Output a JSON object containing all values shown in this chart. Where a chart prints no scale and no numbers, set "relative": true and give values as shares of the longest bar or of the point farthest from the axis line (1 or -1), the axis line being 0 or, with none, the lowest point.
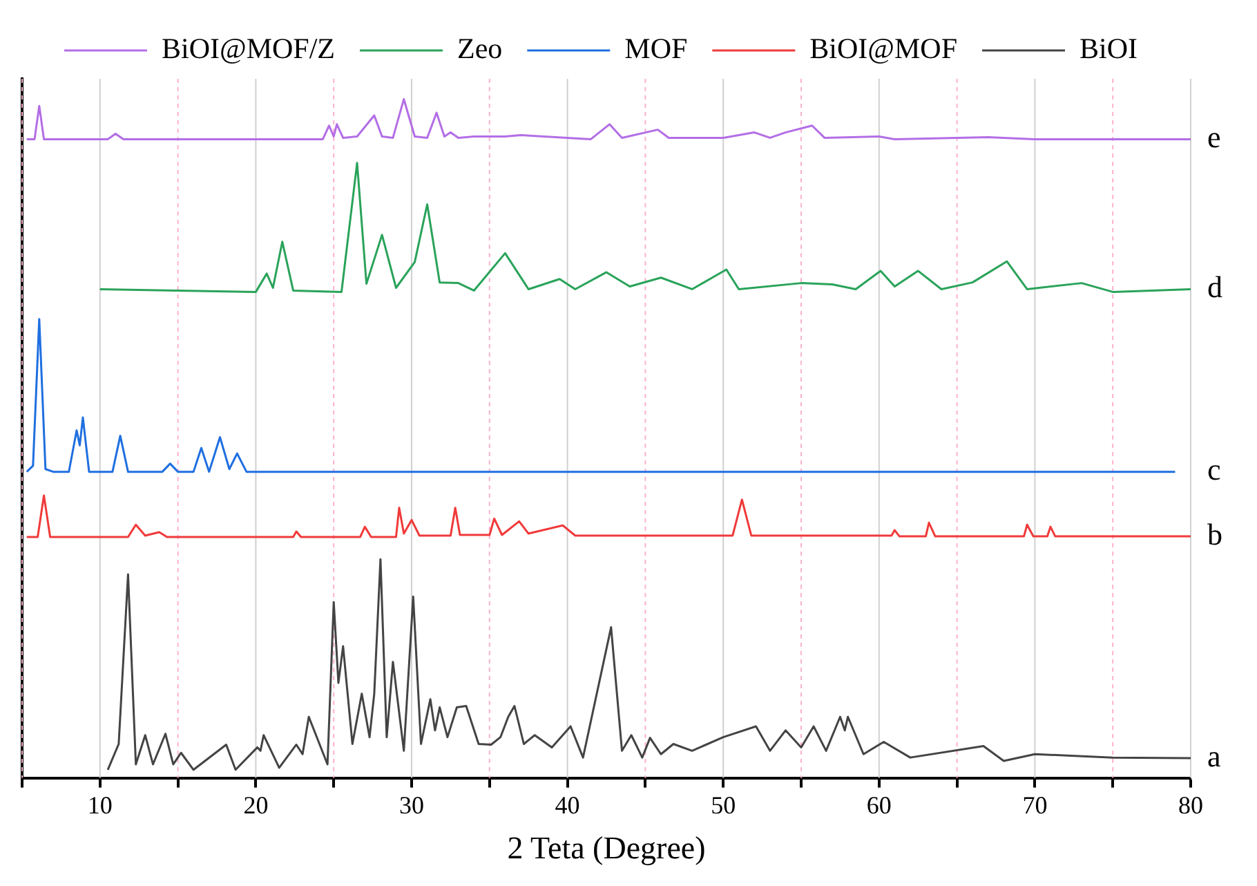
{
  "chart_data": {
    "type": "line",
    "relative": true,
    "xlabel": "2 Teta (Degree)",
    "xlim": [
      5,
      80
    ],
    "xticks": [
      {
        "value": 5,
        "label": null
      },
      10,
      {
        "value": 15,
        "label": null
      },
      20,
      {
        "value": 25,
        "label": null
      },
      30,
      {
        "value": 35,
        "label": null
      },
      40,
      {
        "value": 45,
        "label": null
      },
      50,
      {
        "value": 55,
        "label": null
      },
      60,
      {
        "value": 65,
        "label": null
      },
      70,
      {
        "value": 75,
        "label": null
      },
      80
    ],
    "grid": "x",
    "legend": "top",
    "marker": "none",
    "line_style": "solid",
    "annotations": [
      "e",
      "d",
      "c",
      "b",
      "a"
    ],
    "series": [
      {
        "name": "BiOI@MOF/Z",
        "color": "#b36ee6",
        "x": [
          5.3,
          5.8,
          6.1,
          6.4,
          10.5,
          11,
          11.5,
          24.3,
          24.7,
          25,
          25.2,
          25.6,
          26.5,
          27.6,
          28.1,
          28.8,
          29.5,
          30.2,
          31,
          31.6,
          32.1,
          32.5,
          33,
          34,
          36,
          37,
          41.5,
          42.7,
          43.5,
          45.8,
          46.5,
          50,
          52,
          53,
          54,
          55.7,
          56.5,
          60,
          61,
          67,
          70,
          80
        ],
        "values": [
          0.941,
          0.941,
          0.99,
          0.941,
          0.941,
          0.949,
          0.941,
          0.941,
          0.961,
          0.945,
          0.963,
          0.943,
          0.945,
          0.976,
          0.945,
          0.943,
          1.0,
          0.945,
          0.943,
          0.98,
          0.945,
          0.951,
          0.943,
          0.945,
          0.945,
          0.947,
          0.941,
          0.963,
          0.943,
          0.955,
          0.943,
          0.943,
          0.951,
          0.943,
          0.951,
          0.961,
          0.943,
          0.945,
          0.941,
          0.944,
          0.941,
          0.941
        ]
      },
      {
        "name": "Zeo",
        "color": "#2aa35a",
        "x": [
          10,
          15,
          20,
          20.7,
          21.1,
          21.7,
          22.4,
          25.5,
          26.5,
          27.1,
          28.1,
          29,
          30.2,
          31,
          31.8,
          33,
          34,
          36,
          37.5,
          39.5,
          40.5,
          42.5,
          44,
          46,
          48,
          50.2,
          51,
          55,
          57,
          58.5,
          60.1,
          61,
          62.5,
          64,
          66,
          68.2,
          69.5,
          73,
          75,
          80
        ],
        "values": [
          0.72,
          0.718,
          0.716,
          0.743,
          0.722,
          0.79,
          0.718,
          0.716,
          0.906,
          0.728,
          0.8,
          0.722,
          0.76,
          0.845,
          0.73,
          0.729,
          0.718,
          0.773,
          0.72,
          0.735,
          0.72,
          0.745,
          0.724,
          0.737,
          0.72,
          0.749,
          0.72,
          0.729,
          0.727,
          0.72,
          0.747,
          0.724,
          0.747,
          0.72,
          0.73,
          0.761,
          0.72,
          0.729,
          0.716,
          0.72
        ]
      },
      {
        "name": "MOF",
        "color": "#1f6fe0",
        "x": [
          5.3,
          5.7,
          6.1,
          6.5,
          7,
          8,
          8.5,
          8.7,
          8.9,
          9.3,
          10.8,
          11.3,
          11.8,
          14,
          14.5,
          15,
          16,
          16.5,
          17,
          17.7,
          18.3,
          18.8,
          19.4,
          20,
          79
        ],
        "values": [
          0.451,
          0.46,
          0.676,
          0.455,
          0.451,
          0.451,
          0.512,
          0.49,
          0.531,
          0.451,
          0.451,
          0.504,
          0.451,
          0.451,
          0.463,
          0.451,
          0.451,
          0.486,
          0.451,
          0.502,
          0.455,
          0.478,
          0.451,
          0.451,
          0.451
        ]
      },
      {
        "name": "BiOI@MOF",
        "color": "#f03a3a",
        "x": [
          5.3,
          6,
          6.4,
          6.8,
          11.8,
          12.3,
          12.9,
          13.8,
          14.3,
          22.4,
          22.6,
          22.9,
          26.7,
          27,
          27.4,
          29,
          29.2,
          29.5,
          30,
          30.5,
          32.5,
          32.8,
          33.1,
          35,
          35.3,
          35.8,
          36.9,
          37.5,
          39.7,
          40.5,
          50.6,
          51.2,
          51.8,
          60.8,
          61,
          61.3,
          63,
          63.2,
          63.6,
          69.3,
          69.5,
          69.9,
          70.8,
          71,
          71.3,
          80
        ],
        "values": [
          0.355,
          0.355,
          0.416,
          0.355,
          0.355,
          0.373,
          0.357,
          0.362,
          0.355,
          0.355,
          0.363,
          0.355,
          0.355,
          0.37,
          0.355,
          0.355,
          0.398,
          0.36,
          0.38,
          0.357,
          0.357,
          0.398,
          0.358,
          0.358,
          0.382,
          0.358,
          0.378,
          0.36,
          0.372,
          0.357,
          0.357,
          0.41,
          0.357,
          0.357,
          0.365,
          0.356,
          0.356,
          0.376,
          0.356,
          0.356,
          0.373,
          0.356,
          0.356,
          0.37,
          0.356,
          0.356
        ]
      },
      {
        "name": "BiOI",
        "color": "#444444",
        "x": [
          10.5,
          11.2,
          11.8,
          12.3,
          12.9,
          13.4,
          14.2,
          14.7,
          15.2,
          16,
          18.1,
          18.7,
          20.1,
          20.3,
          20.5,
          21.5,
          22.6,
          23,
          23.4,
          24.6,
          25,
          25.3,
          25.6,
          26.2,
          26.8,
          27.3,
          27.6,
          28,
          28.4,
          28.8,
          29.5,
          30.1,
          30.6,
          31.2,
          31.5,
          31.8,
          32.3,
          32.9,
          33.5,
          34.3,
          35.1,
          35.7,
          36.2,
          36.6,
          37.2,
          37.9,
          39,
          40.2,
          41,
          42.8,
          43.5,
          44.1,
          44.8,
          45.3,
          46,
          46.8,
          48,
          50,
          52.1,
          53,
          54,
          55,
          55.8,
          56.6,
          57.5,
          57.8,
          58,
          59,
          60.3,
          62,
          66.7,
          68,
          70,
          75,
          80
        ],
        "values": [
          0.012,
          0.05,
          0.3,
          0.02,
          0.063,
          0.02,
          0.065,
          0.02,
          0.037,
          0.012,
          0.049,
          0.012,
          0.045,
          0.04,
          0.063,
          0.015,
          0.049,
          0.035,
          0.09,
          0.02,
          0.259,
          0.14,
          0.194,
          0.05,
          0.124,
          0.06,
          0.124,
          0.322,
          0.06,
          0.171,
          0.04,
          0.267,
          0.05,
          0.116,
          0.07,
          0.104,
          0.06,
          0.104,
          0.106,
          0.05,
          0.049,
          0.06,
          0.09,
          0.106,
          0.05,
          0.063,
          0.045,
          0.076,
          0.03,
          0.222,
          0.04,
          0.063,
          0.03,
          0.059,
          0.035,
          0.05,
          0.04,
          0.06,
          0.076,
          0.04,
          0.07,
          0.045,
          0.076,
          0.04,
          0.09,
          0.07,
          0.09,
          0.035,
          0.053,
          0.03,
          0.047,
          0.025,
          0.035,
          0.03,
          0.029
        ]
      }
    ]
  }
}
